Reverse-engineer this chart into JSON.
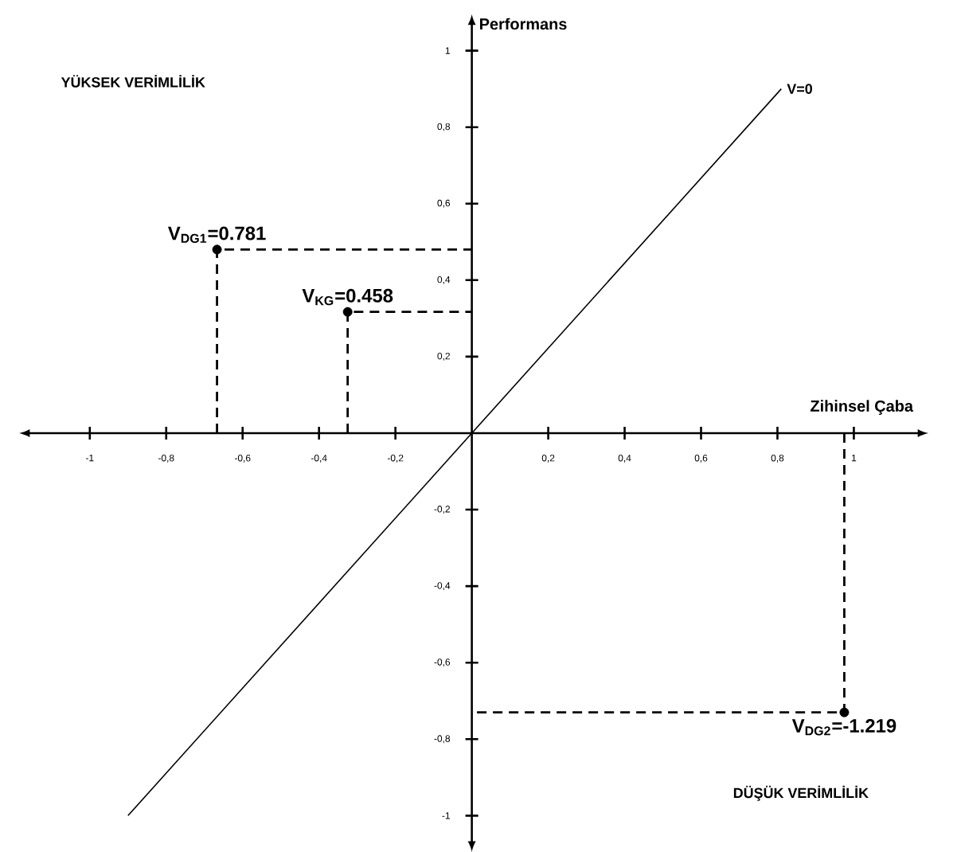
{
  "chart_data": {
    "type": "line",
    "marker": "circle",
    "xlabel": "Zihinsel Çaba",
    "ylabel": "Performans",
    "xlim": [
      -1.16,
      1.17
    ],
    "ylim": [
      -1.07,
      1.07
    ],
    "xticks": [
      {
        "value": -1,
        "label": "-1"
      },
      {
        "value": -0.8,
        "label": "-0,8"
      },
      {
        "value": -0.6,
        "label": "-0,6"
      },
      {
        "value": -0.4,
        "label": "-0,4"
      },
      {
        "value": -0.2,
        "label": "-0,2"
      },
      {
        "value": 0.2,
        "label": "0,2"
      },
      {
        "value": 0.4,
        "label": "0,4"
      },
      {
        "value": 0.6,
        "label": "0,6"
      },
      {
        "value": 0.8,
        "label": "0,8"
      },
      {
        "value": 1,
        "label": "1"
      }
    ],
    "yticks": [
      {
        "value": -1,
        "label": "-1"
      },
      {
        "value": -0.8,
        "label": "-0,8"
      },
      {
        "value": -0.6,
        "label": "-0,6"
      },
      {
        "value": -0.4,
        "label": "-0,4"
      },
      {
        "value": -0.2,
        "label": "-0,2"
      },
      {
        "value": 0.2,
        "label": "0,2"
      },
      {
        "value": 0.4,
        "label": "0,4"
      },
      {
        "value": 0.6,
        "label": "0,6"
      },
      {
        "value": 0.8,
        "label": "0,8"
      },
      {
        "value": 1,
        "label": "1"
      }
    ],
    "series": [
      {
        "name": "V=0",
        "color": "#000000",
        "line_style": "solid",
        "marker": "none",
        "x": [
          -0.9,
          0.81
        ],
        "values": [
          -1.0,
          0.9
        ]
      },
      {
        "color": "#000000",
        "line_style": "dashed",
        "marker": "none",
        "x": [
          -0.667,
          -0.667,
          0
        ],
        "values": [
          0,
          0.48,
          0.48
        ]
      },
      {
        "color": "#000000",
        "line_style": "dashed",
        "marker": "none",
        "x": [
          -0.325,
          -0.325,
          0
        ],
        "values": [
          0,
          0.317,
          0.317
        ]
      },
      {
        "color": "#000000",
        "line_style": "dashed",
        "marker": "none",
        "x": [
          0.975,
          0.975,
          0
        ],
        "values": [
          0,
          -0.73,
          -0.73
        ]
      },
      {
        "type": "scatter",
        "color": "#000000",
        "x": [
          -0.667,
          -0.325,
          0.975
        ],
        "values": [
          0.48,
          0.317,
          -0.73
        ]
      }
    ],
    "annotations": [
      "YÜKSEK VERİMLİLİK",
      "DÜŞÜK VERİMLİLİK",
      {
        "text": "V$_{DG1}$=0.781",
        "x": -0.667,
        "y": 0.48
      },
      {
        "text": "V$_{KG}$=0.458",
        "x": -0.325,
        "y": 0.317
      },
      {
        "text": "V$_{DG2}$=-1.219",
        "x": 0.975,
        "y": -0.73
      }
    ]
  }
}
